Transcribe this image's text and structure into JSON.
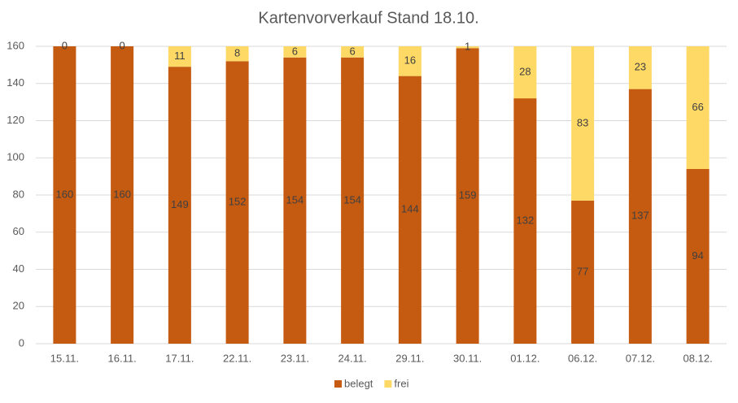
{
  "chart_data": {
    "type": "bar",
    "stacked": true,
    "title": "Kartenvorverkauf Stand 18.10.",
    "categories": [
      "15.11.",
      "16.11.",
      "17.11.",
      "22.11.",
      "23.11.",
      "24.11.",
      "29.11.",
      "30.11.",
      "01.12.",
      "06.12.",
      "07.12.",
      "08.12."
    ],
    "series": [
      {
        "name": "belegt",
        "color": "#c55a11",
        "values": [
          160,
          160,
          149,
          152,
          154,
          154,
          144,
          159,
          132,
          77,
          137,
          94
        ]
      },
      {
        "name": "frei",
        "color": "#ffd966",
        "values": [
          0,
          0,
          11,
          8,
          6,
          6,
          16,
          1,
          28,
          83,
          23,
          66
        ]
      }
    ],
    "ylim": [
      0,
      160
    ],
    "yticks": [
      0,
      20,
      40,
      60,
      80,
      100,
      120,
      140,
      160
    ],
    "grid": true,
    "legend": "bottom"
  }
}
